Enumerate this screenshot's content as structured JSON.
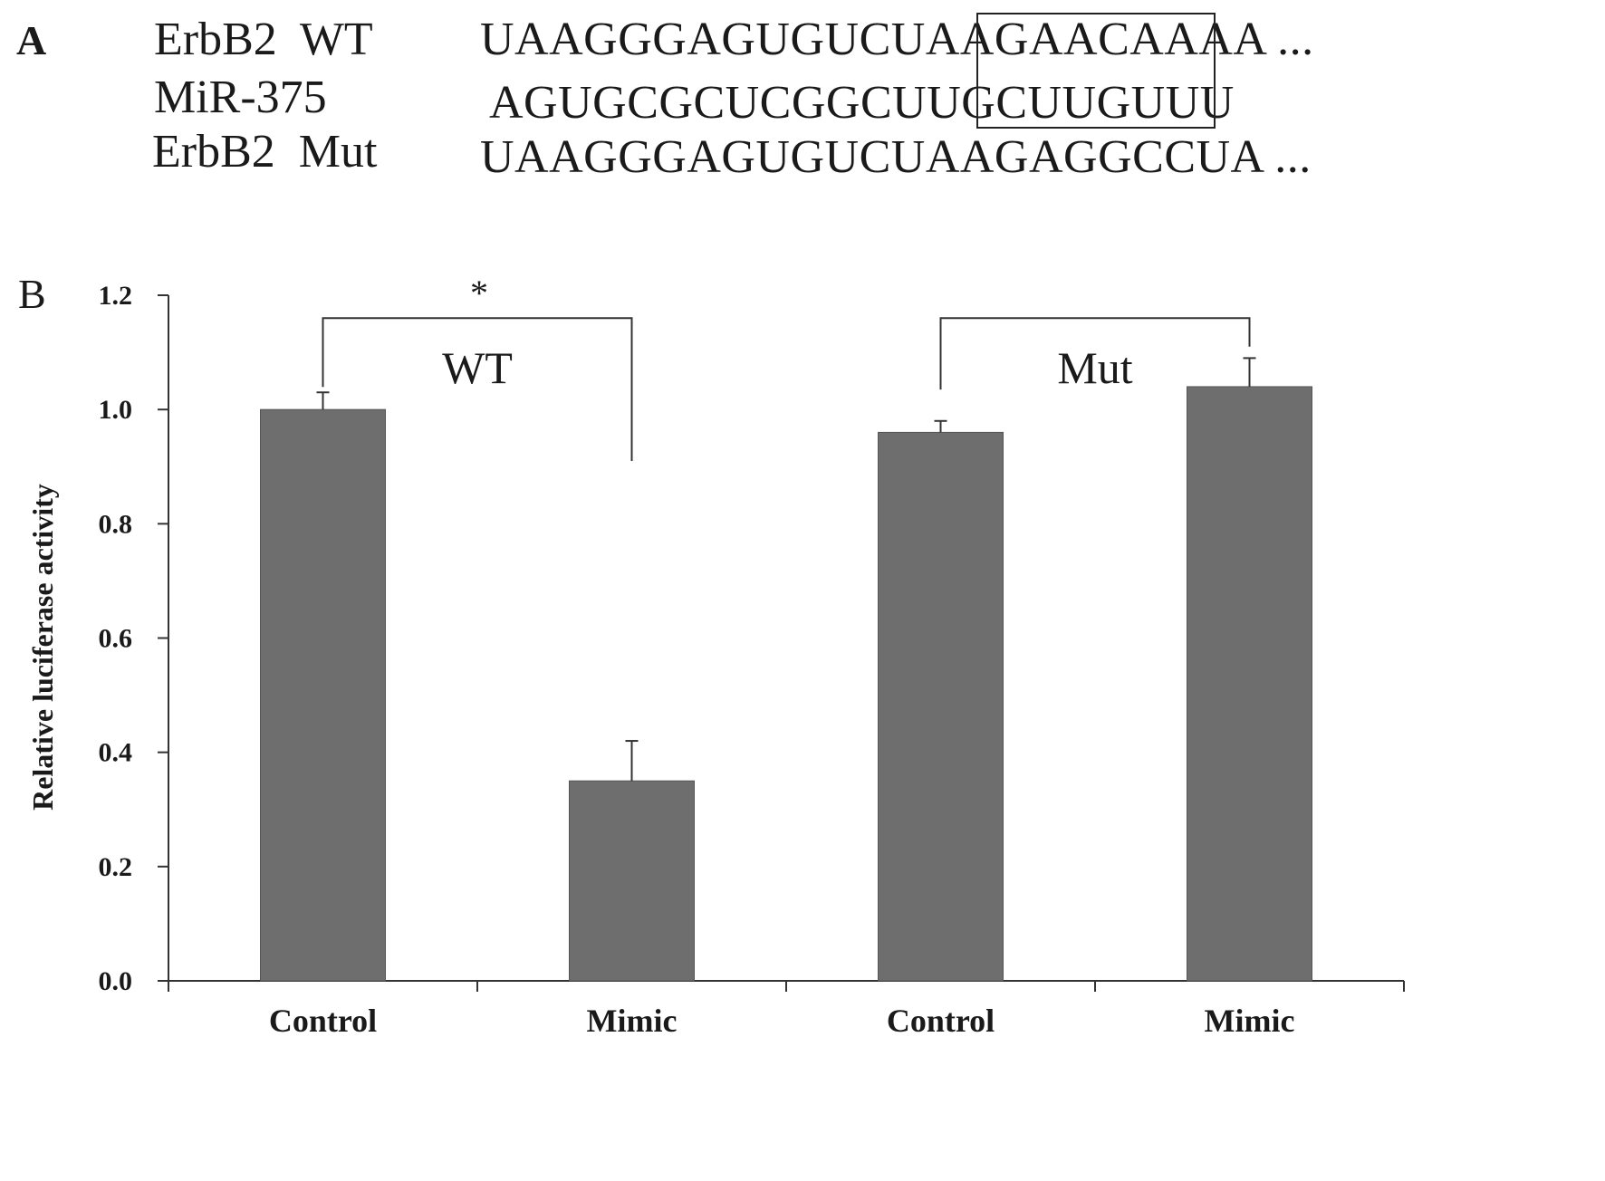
{
  "panel_a": {
    "letter": "A",
    "rows": [
      {
        "name": "ErbB2  WT",
        "sequence": "UAAGGGAGUGUCUAAGAACAAAA ..."
      },
      {
        "name": "MiR-375",
        "sequence": "AGUGCGCUCGGCUUGCUUGUUU"
      },
      {
        "name": "ErbB2  Mut",
        "sequence": "UAAGGGAGUGUCUAAGAGGCCUA ..."
      }
    ]
  },
  "panel_b": {
    "letter": "B"
  },
  "chart_data": {
    "type": "bar",
    "categories": [
      "Control",
      "Mimic",
      "Control",
      "Mimic"
    ],
    "values": [
      1.0,
      0.35,
      0.96,
      1.04
    ],
    "errors": [
      0.03,
      0.07,
      0.02,
      0.05
    ],
    "groups": [
      {
        "label": "WT",
        "categories": [
          0,
          1
        ],
        "significance": "*"
      },
      {
        "label": "Mut",
        "categories": [
          2,
          3
        ],
        "significance": ""
      }
    ],
    "ylabel": "Relative luciferase activity",
    "xlabel": "",
    "ylim": [
      0,
      1.2
    ],
    "yticks": [
      "0.0",
      "0.2",
      "0.4",
      "0.6",
      "0.8",
      "1.0",
      "1.2"
    ],
    "bar_color": "#6e6e6e",
    "grid": false
  }
}
